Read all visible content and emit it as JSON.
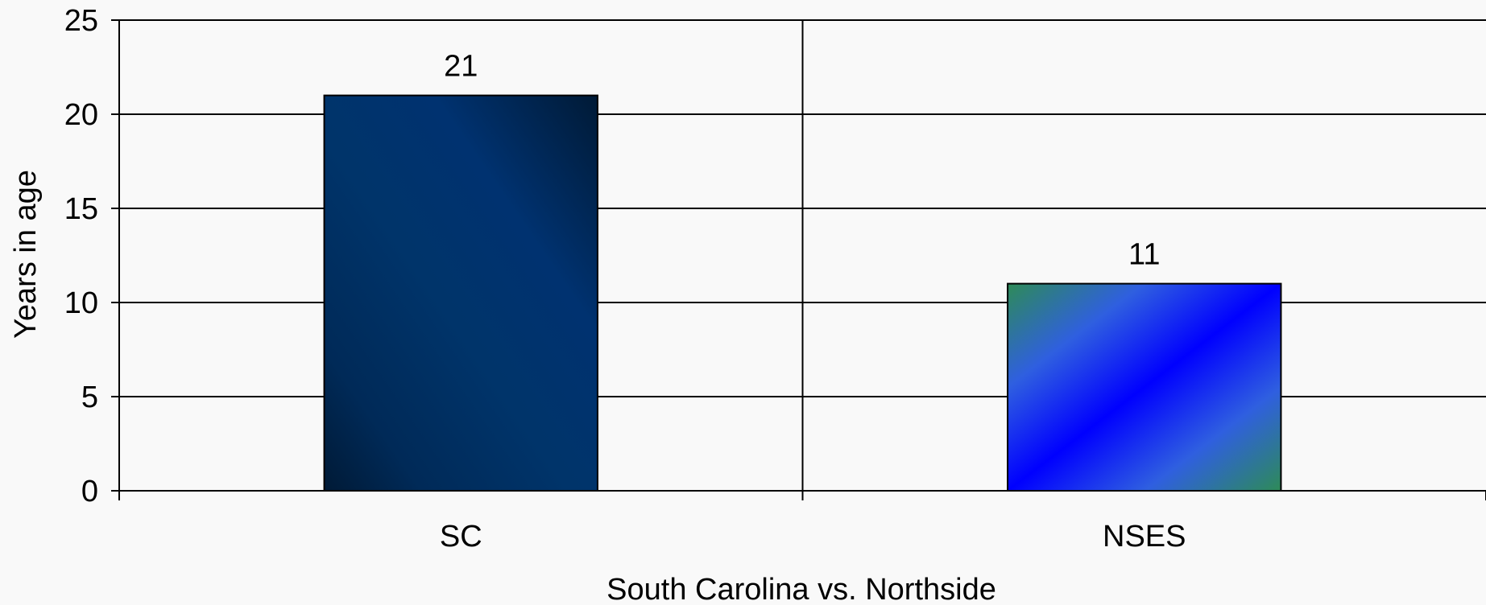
{
  "chart_data": {
    "type": "bar",
    "categories": [
      "SC",
      "NSES"
    ],
    "values": [
      21,
      11
    ],
    "data_labels": [
      "21",
      "11"
    ],
    "title": "",
    "xlabel": "South Carolina vs. Northside",
    "ylabel": "Years in age",
    "ylim": [
      0,
      25
    ],
    "yticks": [
      "0",
      "5",
      "10",
      "15",
      "20",
      "25"
    ],
    "grid": true,
    "bar_colors": [
      {
        "dark": "#001a36",
        "mid": "#00346a",
        "light": "#003872"
      },
      {
        "edge": "#2e8b57",
        "mid": "#2f5fe0",
        "center": "#0000ff"
      }
    ]
  }
}
